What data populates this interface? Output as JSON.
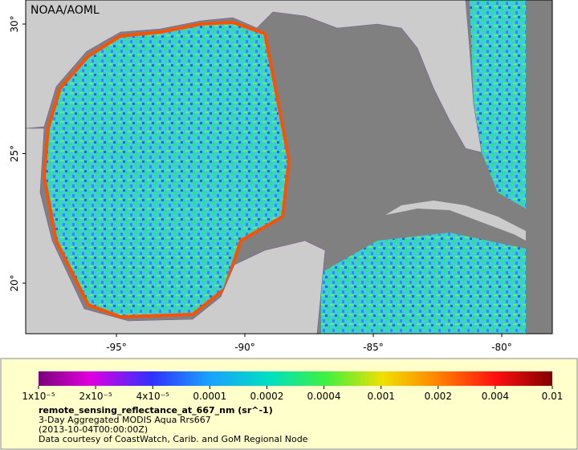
{
  "map": {
    "credit": "NOAA/AOML",
    "lat_ticks": [
      {
        "value": 30,
        "label": "30°"
      },
      {
        "value": 25,
        "label": "25°"
      },
      {
        "value": 20,
        "label": "20°"
      }
    ],
    "lon_ticks": [
      {
        "value": -95,
        "label": "-95°"
      },
      {
        "value": -90,
        "label": "-90°"
      },
      {
        "value": -85,
        "label": "-85°"
      },
      {
        "value": -80,
        "label": "-80°"
      }
    ]
  },
  "colorbar": {
    "ticks": [
      {
        "value": 1e-05,
        "label": "1x10⁻⁵"
      },
      {
        "value": 2e-05,
        "label": "2x10⁻⁵"
      },
      {
        "value": 4e-05,
        "label": "4x10⁻⁵"
      },
      {
        "value": 0.0001,
        "label": "0.0001"
      },
      {
        "value": 0.0002,
        "label": "0.0002"
      },
      {
        "value": 0.0004,
        "label": "0.0004"
      },
      {
        "value": 0.001,
        "label": "0.001"
      },
      {
        "value": 0.002,
        "label": "0.002"
      },
      {
        "value": 0.004,
        "label": "0.004"
      },
      {
        "value": 0.01,
        "label": "0.01"
      }
    ]
  },
  "legend": {
    "variable": "remote_sensing_reflectance_at_667_nm (sr^-1)",
    "lines": [
      "3-Day Aggregated MODIS Aqua Rrs667",
      "(2013-10-04T00:00:00Z)",
      "Data courtesy of CoastWatch, Carib. and GoM Regional Node"
    ]
  }
}
